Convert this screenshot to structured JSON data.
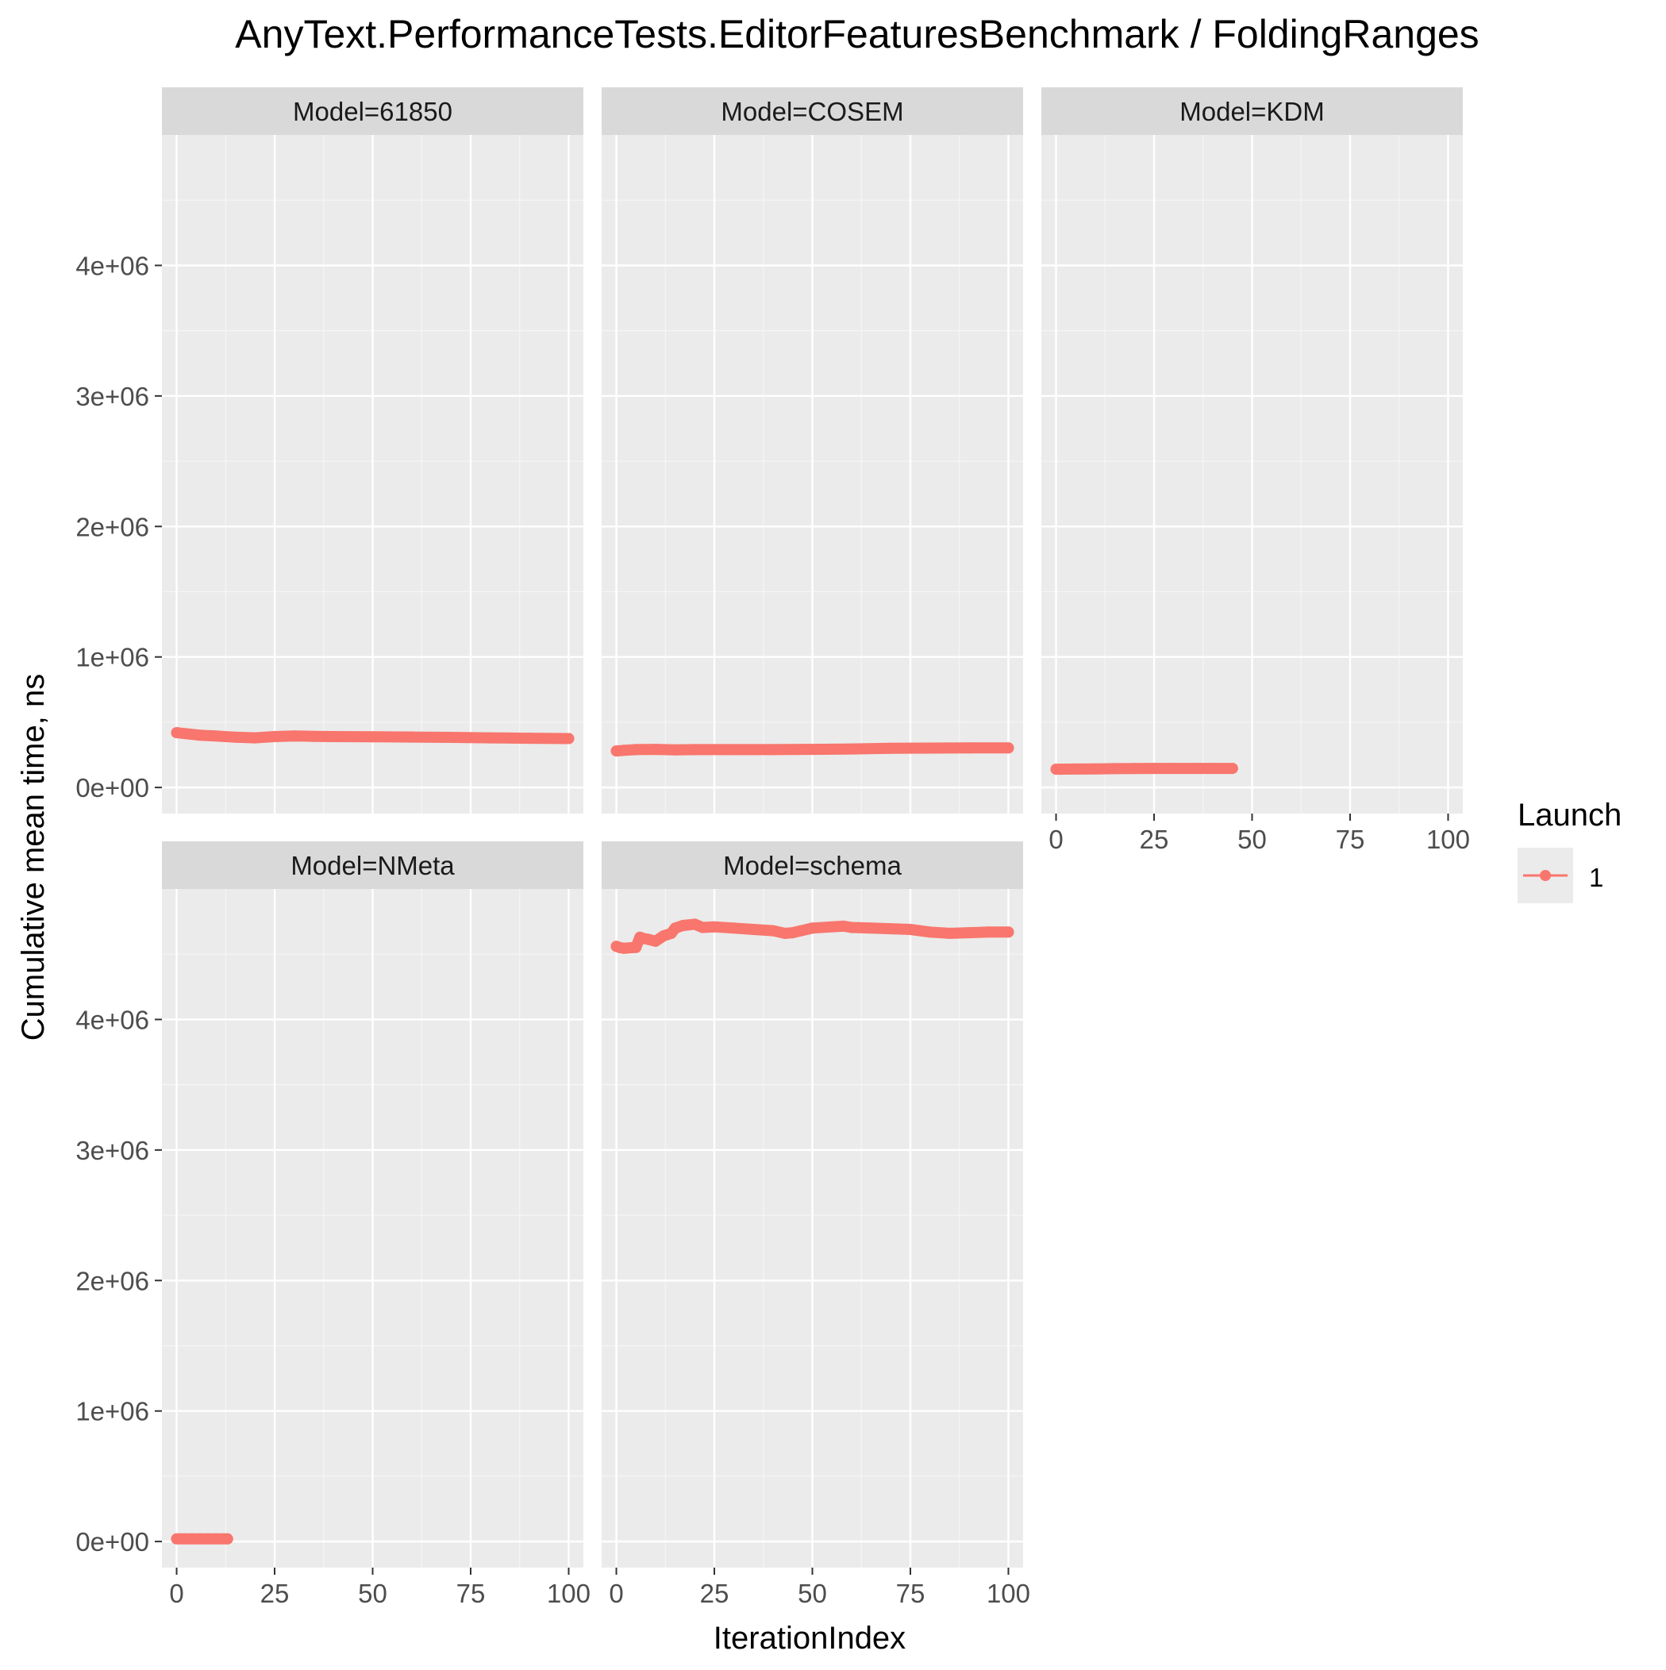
{
  "chart_data": {
    "type": "line",
    "title": "AnyText.PerformanceTests.EditorFeaturesBenchmark / FoldingRanges",
    "xlabel": "IterationIndex",
    "ylabel": "Cumulative mean time, ns",
    "xlim": [
      -3.75,
      103.75
    ],
    "ylim": [
      -200000,
      5000000
    ],
    "x_ticks": [
      0,
      25,
      50,
      75,
      100
    ],
    "x_tick_labels": [
      "0",
      "25",
      "50",
      "75",
      "100"
    ],
    "y_ticks": [
      0,
      1000000,
      2000000,
      3000000,
      4000000
    ],
    "y_tick_labels": [
      "0e+00",
      "1e+06",
      "2e+06",
      "3e+06",
      "4e+06"
    ],
    "grid": true,
    "legend": {
      "title": "Launch",
      "position": "right",
      "entries": [
        {
          "label": "1",
          "color": "#F8766D"
        }
      ]
    },
    "series_color": "#F8766D",
    "panels": [
      {
        "label": "Model=61850",
        "series": [
          {
            "name": "1",
            "x": [
              0,
              3,
              6,
              10,
              15,
              20,
              25,
              30,
              35,
              40,
              50,
              60,
              70,
              80,
              90,
              100
            ],
            "y": [
              420000,
              410000,
              400000,
              395000,
              385000,
              380000,
              390000,
              395000,
              392000,
              390000,
              388000,
              386000,
              384000,
              380000,
              377000,
              375000
            ]
          }
        ]
      },
      {
        "label": "Model=COSEM",
        "series": [
          {
            "name": "1",
            "x": [
              0,
              2,
              5,
              10,
              15,
              20,
              30,
              40,
              50,
              60,
              70,
              80,
              90,
              100
            ],
            "y": [
              280000,
              285000,
              290000,
              292000,
              288000,
              290000,
              290000,
              290000,
              292000,
              295000,
              300000,
              302000,
              303000,
              303000
            ]
          }
        ]
      },
      {
        "label": "Model=KDM",
        "series": [
          {
            "name": "1",
            "x": [
              0,
              5,
              10,
              15,
              20,
              25,
              30,
              35,
              40,
              45
            ],
            "y": [
              140000,
              141000,
              142000,
              144000,
              145000,
              146000,
              146000,
              146000,
              146000,
              146000
            ]
          }
        ]
      },
      {
        "label": "Model=NMeta",
        "series": [
          {
            "name": "1",
            "x": [
              0,
              2,
              4,
              6,
              8,
              10,
              12,
              13
            ],
            "y": [
              20000,
              20000,
              20000,
              20000,
              20000,
              20000,
              20000,
              20000
            ]
          }
        ]
      },
      {
        "label": "Model=schema",
        "series": [
          {
            "name": "1",
            "x": [
              0,
              1,
              2,
              3,
              4,
              5,
              6,
              7,
              8,
              10,
              12,
              14,
              15,
              17,
              20,
              22,
              25,
              30,
              35,
              40,
              43,
              45,
              50,
              55,
              58,
              60,
              65,
              70,
              75,
              80,
              85,
              90,
              95,
              100
            ],
            "y": [
              4560000,
              4550000,
              4545000,
              4548000,
              4550000,
              4552000,
              4630000,
              4620000,
              4615000,
              4600000,
              4640000,
              4660000,
              4700000,
              4720000,
              4730000,
              4705000,
              4710000,
              4700000,
              4690000,
              4680000,
              4660000,
              4665000,
              4700000,
              4710000,
              4715000,
              4705000,
              4700000,
              4695000,
              4690000,
              4670000,
              4660000,
              4665000,
              4670000,
              4670000
            ]
          }
        ]
      }
    ]
  }
}
